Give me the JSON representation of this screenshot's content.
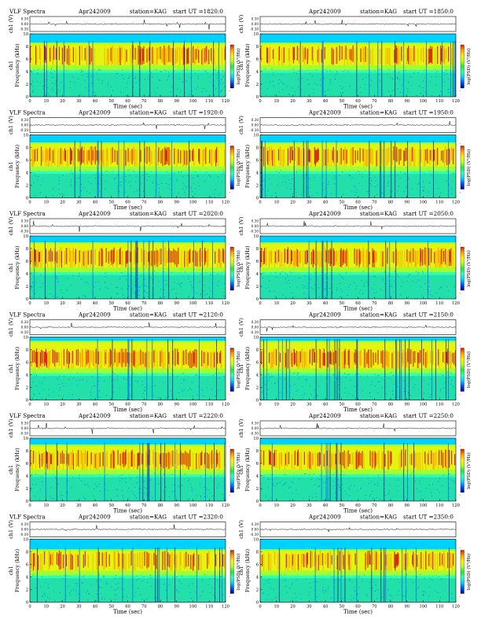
{
  "colors": {
    "scale": [
      "#00008b",
      "#0050ff",
      "#00d2ff",
      "#30ffb0",
      "#22e63c",
      "#b4ff1e",
      "#fff000",
      "#ffa000",
      "#d21e0a"
    ]
  },
  "chart_data": [
    {
      "type": "heatmap",
      "header_left": "VLF Spectra",
      "date": "Apr242009",
      "station": "station=KAG",
      "start": "start  UT  =1820:0",
      "ch_label": "ch1 (V)",
      "ch_ticks": [
        "0.30",
        "0.00",
        "-0.30"
      ],
      "ylabel": "Frequency (kHz)",
      "ylabel_ch": "ch1",
      "yticks": [
        "0",
        "2",
        "4",
        "6",
        "8",
        "10"
      ],
      "ylim": [
        0,
        10
      ],
      "xlabel": "Time (sec)",
      "xticks": [
        "0",
        "10",
        "20",
        "30",
        "40",
        "50",
        "60",
        "70",
        "80",
        "90",
        "100",
        "110",
        "120"
      ],
      "xlim": [
        0,
        120
      ],
      "colorbar_label": "log(PSD) (V²/Hz)",
      "colorbar_ticks": [
        "-",
        "-"
      ],
      "band_top_khz": 8.6,
      "intensity": 0.6
    },
    {
      "type": "heatmap",
      "header_left": "",
      "date": "Apr242009",
      "station": "station=KAG",
      "start": "start  UT  =1850:0",
      "ch_label": "ch1 (V)",
      "ch_ticks": [
        "0.30",
        "0.00",
        "-0.30"
      ],
      "ylabel": "Frequency (kHz)",
      "ylabel_ch": "ch1",
      "yticks": [
        "0",
        "2",
        "4",
        "6",
        "8",
        "10"
      ],
      "ylim": [
        0,
        10
      ],
      "xlabel": "Time (sec)",
      "xticks": [
        "0",
        "10",
        "20",
        "30",
        "40",
        "50",
        "60",
        "70",
        "80",
        "90",
        "100",
        "110",
        "120"
      ],
      "xlim": [
        0,
        120
      ],
      "colorbar_label": "log(PSD) (V²/Hz)",
      "colorbar_ticks": [
        "-",
        "-"
      ],
      "band_top_khz": 8.6,
      "intensity": 0.55
    },
    {
      "type": "heatmap",
      "header_left": "VLF Spectra",
      "date": "Apr242009",
      "station": "station=KAG",
      "start": "start  UT  =1920:0",
      "ch_label": "ch1 (V)",
      "ch_ticks": [
        "0.30",
        "0.00",
        "-0.30"
      ],
      "ylabel": "Frequency (kHz)",
      "ylabel_ch": "ch1",
      "yticks": [
        "0",
        "2",
        "4",
        "6",
        "8",
        "10"
      ],
      "ylim": [
        0,
        10
      ],
      "xlabel": "Time (sec)",
      "xticks": [
        "0",
        "10",
        "20",
        "30",
        "40",
        "50",
        "60",
        "70",
        "80",
        "90",
        "100",
        "110",
        "120"
      ],
      "xlim": [
        0,
        120
      ],
      "colorbar_label": "log(PSD) (V²/Hz)",
      "colorbar_ticks": [
        "-",
        "-"
      ],
      "band_top_khz": 8.8,
      "intensity": 0.6
    },
    {
      "type": "heatmap",
      "header_left": "",
      "date": "Apr242009",
      "station": "station=KAG",
      "start": "start  UT  =1950:0",
      "ch_label": "ch1 (V)",
      "ch_ticks": [
        "0.30",
        "0.00",
        "-0.30"
      ],
      "ylabel": "Frequency (kHz)",
      "ylabel_ch": "ch1",
      "yticks": [
        "0",
        "2",
        "4",
        "6",
        "8",
        "10"
      ],
      "ylim": [
        0,
        10
      ],
      "xlabel": "Time (sec)",
      "xticks": [
        "0",
        "10",
        "20",
        "30",
        "40",
        "50",
        "60",
        "70",
        "80",
        "90",
        "100",
        "110",
        "120"
      ],
      "xlim": [
        0,
        120
      ],
      "colorbar_label": "log(PSD) (V²/Hz)",
      "colorbar_ticks": [
        "-",
        "-"
      ],
      "band_top_khz": 8.8,
      "intensity": 0.55
    },
    {
      "type": "heatmap",
      "header_left": "VLF Spectra",
      "date": "Apr242009",
      "station": "station=KAG",
      "start": "start  UT  =2020:0",
      "ch_label": "ch1 (V)",
      "ch_ticks": [
        "0.30",
        "0.00",
        "-0.30"
      ],
      "ylabel": "Frequency (kHz)",
      "ylabel_ch": "ch1",
      "yticks": [
        "0",
        "2",
        "4",
        "6",
        "8",
        "10"
      ],
      "ylim": [
        0,
        10
      ],
      "xlabel": "Time (sec)",
      "xticks": [
        "0",
        "10",
        "20",
        "30",
        "40",
        "50",
        "60",
        "70",
        "80",
        "90",
        "100",
        "110",
        "120"
      ],
      "xlim": [
        0,
        120
      ],
      "colorbar_label": "log(PSD) (V²/Hz)",
      "colorbar_ticks": [
        "-",
        "-"
      ],
      "band_top_khz": 9.0,
      "intensity": 0.65
    },
    {
      "type": "heatmap",
      "header_left": "",
      "date": "Apr242009",
      "station": "station=KAG",
      "start": "start  UT  =2050:0",
      "ch_label": "ch1 (V)",
      "ch_ticks": [
        "0.30",
        "0.00",
        "-0.30"
      ],
      "ylabel": "Frequency (kHz)",
      "ylabel_ch": "ch1",
      "yticks": [
        "0",
        "2",
        "4",
        "6",
        "8",
        "10"
      ],
      "ylim": [
        0,
        10
      ],
      "xlabel": "Time (sec)",
      "xticks": [
        "0",
        "10",
        "20",
        "30",
        "40",
        "50",
        "60",
        "70",
        "80",
        "90",
        "100",
        "110",
        "120"
      ],
      "xlim": [
        0,
        120
      ],
      "colorbar_label": "log(PSD) (V²/Hz)",
      "colorbar_ticks": [
        "-",
        "-"
      ],
      "band_top_khz": 9.0,
      "intensity": 0.65
    },
    {
      "type": "heatmap",
      "header_left": "VLF Spectra",
      "date": "Apr242009",
      "station": "station=KAG",
      "start": "start  UT  =2120:0",
      "ch_label": "ch1 (V)",
      "ch_ticks": [
        "0.30",
        "0.00",
        "-0.30"
      ],
      "ylabel": "Frequency (kHz)",
      "ylabel_ch": "ch1",
      "yticks": [
        "0",
        "2",
        "4",
        "6",
        "8",
        "10"
      ],
      "ylim": [
        0,
        10
      ],
      "xlabel": "Time (sec)",
      "xticks": [
        "0",
        "10",
        "20",
        "30",
        "40",
        "50",
        "60",
        "70",
        "80",
        "90",
        "100",
        "110",
        "120"
      ],
      "xlim": [
        0,
        120
      ],
      "colorbar_label": "log(PSD) (V²/Hz)",
      "colorbar_ticks": [
        "-",
        "-"
      ],
      "band_top_khz": 9.4,
      "intensity": 0.7
    },
    {
      "type": "heatmap",
      "header_left": "",
      "date": "Apr242009",
      "station": "station=KAG",
      "start": "start  UT  =2150:0",
      "ch_label": "ch1 (V)",
      "ch_ticks": [
        "0.30",
        "0.00",
        "-0.30"
      ],
      "ylabel": "Frequency (kHz)",
      "ylabel_ch": "ch1",
      "yticks": [
        "0",
        "2",
        "4",
        "6",
        "8",
        "10"
      ],
      "ylim": [
        0,
        10
      ],
      "xlabel": "Time (sec)",
      "xticks": [
        "0",
        "10",
        "20",
        "30",
        "40",
        "50",
        "60",
        "70",
        "80",
        "90",
        "100",
        "110",
        "120"
      ],
      "xlim": [
        0,
        120
      ],
      "colorbar_label": "log(PSD) (V²/Hz)",
      "colorbar_ticks": [
        "-",
        "-"
      ],
      "band_top_khz": 9.4,
      "intensity": 0.7
    },
    {
      "type": "heatmap",
      "header_left": "VLF Spectra",
      "date": "Apr242009",
      "station": "station=KAG",
      "start": "start  UT  =2220:0",
      "ch_label": "ch1 (V)",
      "ch_ticks": [
        "0.30",
        "0.00",
        "-0.30"
      ],
      "ylabel": "Frequency (kHz)",
      "ylabel_ch": "ch1",
      "yticks": [
        "0",
        "2",
        "4",
        "6",
        "8",
        "10"
      ],
      "ylim": [
        0,
        10
      ],
      "xlabel": "Time (sec)",
      "xticks": [
        "0",
        "10",
        "20",
        "30",
        "40",
        "50",
        "60",
        "70",
        "80",
        "90",
        "100",
        "110",
        "120"
      ],
      "xlim": [
        0,
        120
      ],
      "colorbar_label": "log(PSD) (V²/Hz)",
      "colorbar_ticks": [
        "-",
        "-"
      ],
      "band_top_khz": 9.0,
      "intensity": 0.65
    },
    {
      "type": "heatmap",
      "header_left": "",
      "date": "Apr242009",
      "station": "station=KAG",
      "start": "start  UT  =2250:0",
      "ch_label": "ch1 (V)",
      "ch_ticks": [
        "0.30",
        "0.00",
        "-0.30"
      ],
      "ylabel": "Frequency (kHz)",
      "ylabel_ch": "ch1",
      "yticks": [
        "0",
        "2",
        "4",
        "6",
        "8",
        "10"
      ],
      "ylim": [
        0,
        10
      ],
      "xlabel": "Time (sec)",
      "xticks": [
        "0",
        "10",
        "20",
        "30",
        "40",
        "50",
        "60",
        "70",
        "80",
        "90",
        "100",
        "110",
        "120"
      ],
      "xlim": [
        0,
        120
      ],
      "colorbar_label": "log(PSD) (V²/Hz)",
      "colorbar_ticks": [
        "-",
        "-"
      ],
      "band_top_khz": 9.0,
      "intensity": 0.6
    },
    {
      "type": "heatmap",
      "header_left": "VLF Spectra",
      "date": "Apr242009",
      "station": "station=KAG",
      "start": "start  UT  =2320:0",
      "ch_label": "ch1 (V)",
      "ch_ticks": [
        "0.30",
        "0.00",
        "-0.30"
      ],
      "ylabel": "Frequency (kHz)",
      "ylabel_ch": "ch1",
      "yticks": [
        "0",
        "2",
        "4",
        "6",
        "8",
        "10"
      ],
      "ylim": [
        0,
        10
      ],
      "xlabel": "Time (sec)",
      "xticks": [
        "0",
        "10",
        "20",
        "30",
        "40",
        "50",
        "60",
        "70",
        "80",
        "90",
        "100",
        "110",
        "120"
      ],
      "xlim": [
        0,
        120
      ],
      "colorbar_label": "log(PSD) (V²/Hz)",
      "colorbar_ticks": [
        "-",
        "-"
      ],
      "band_top_khz": 8.4,
      "intensity": 0.45
    },
    {
      "type": "heatmap",
      "header_left": "",
      "date": "Apr242009",
      "station": "station=KAG",
      "start": "start  UT  =2350:0",
      "ch_label": "ch1 (V)",
      "ch_ticks": [
        "0.30",
        "0.00",
        "-0.30"
      ],
      "ylabel": "Frequency (kHz)",
      "ylabel_ch": "ch1",
      "yticks": [
        "0",
        "2",
        "4",
        "6",
        "8",
        "10"
      ],
      "ylim": [
        0,
        10
      ],
      "xlabel": "Time (sec)",
      "xticks": [
        "0",
        "10",
        "20",
        "30",
        "40",
        "50",
        "60",
        "70",
        "80",
        "90",
        "100",
        "110",
        "120"
      ],
      "xlim": [
        0,
        120
      ],
      "colorbar_label": "log(PSD) (V²/Hz)",
      "colorbar_ticks": [
        "-",
        "-"
      ],
      "band_top_khz": 8.4,
      "intensity": 0.45
    }
  ]
}
